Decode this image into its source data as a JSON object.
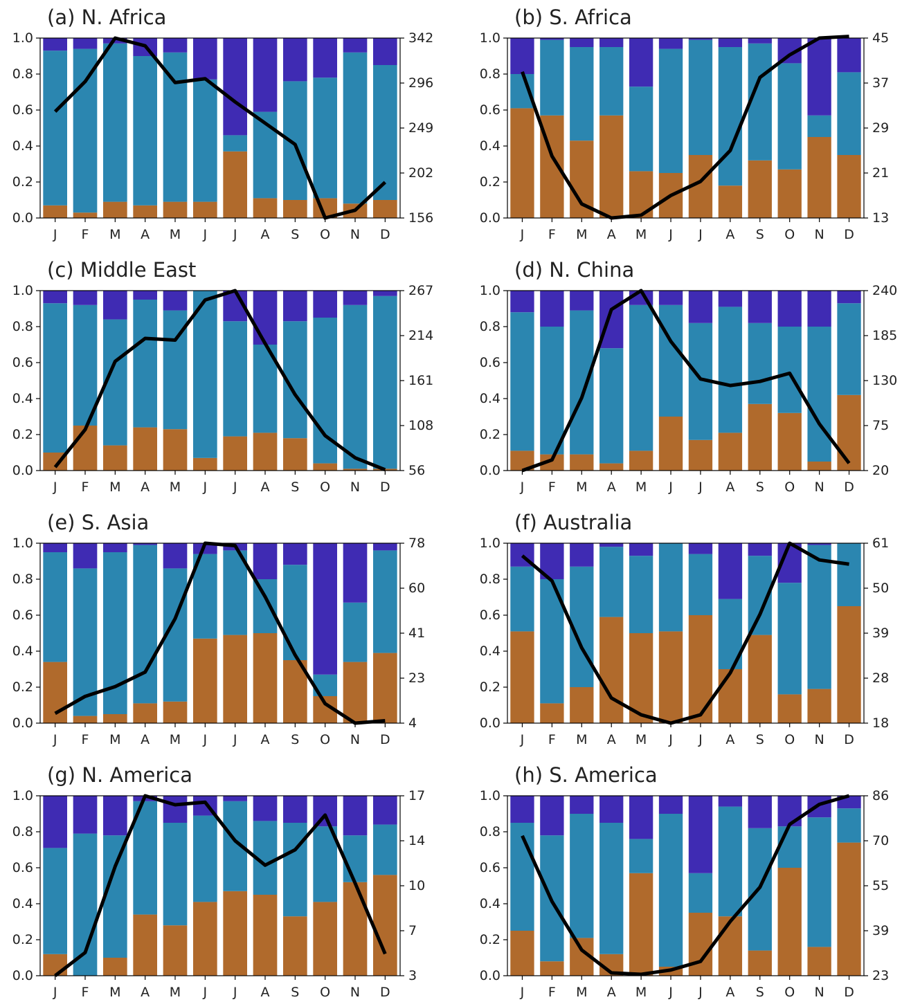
{
  "colors": {
    "bottom": "#b06a2c",
    "middle": "#2b86b0",
    "top": "#3f2bb3",
    "line": "#000000"
  },
  "chart_data": [
    {
      "type": "bar",
      "title": "(a) N. Africa",
      "categories": [
        "J",
        "F",
        "M",
        "A",
        "M",
        "J",
        "J",
        "A",
        "S",
        "O",
        "N",
        "D"
      ],
      "ylim": [
        0,
        1.0
      ],
      "yticks": [
        "0.0",
        "0.2",
        "0.4",
        "0.6",
        "0.8",
        "1.0"
      ],
      "y2lim": [
        156,
        342
      ],
      "y2ticks": [
        "156",
        "202",
        "249",
        "296",
        "342"
      ],
      "series": [
        {
          "values": [
            0.07,
            0.03,
            0.09,
            0.07,
            0.09,
            0.09,
            0.37,
            0.11,
            0.1,
            0.11,
            0.08,
            0.1
          ]
        },
        {
          "values": [
            0.86,
            0.91,
            0.88,
            0.83,
            0.83,
            0.68,
            0.09,
            0.48,
            0.66,
            0.67,
            0.84,
            0.75
          ]
        },
        {
          "values": [
            0.07,
            0.06,
            0.03,
            0.1,
            0.08,
            0.23,
            0.54,
            0.41,
            0.24,
            0.22,
            0.08,
            0.15
          ]
        }
      ],
      "line": [
        266,
        297,
        342,
        334,
        296,
        300,
        276,
        254,
        232,
        156,
        164,
        193
      ]
    },
    {
      "type": "bar",
      "title": "(b) S. Africa",
      "categories": [
        "J",
        "F",
        "M",
        "A",
        "M",
        "J",
        "J",
        "A",
        "S",
        "O",
        "N",
        "D"
      ],
      "ylim": [
        0,
        1.0
      ],
      "yticks": [
        "0.0",
        "0.2",
        "0.4",
        "0.6",
        "0.8",
        "1.0"
      ],
      "y2lim": [
        13,
        45
      ],
      "y2ticks": [
        "13",
        "21",
        "29",
        "37",
        "45"
      ],
      "series": [
        {
          "values": [
            0.61,
            0.57,
            0.43,
            0.57,
            0.26,
            0.25,
            0.35,
            0.18,
            0.32,
            0.27,
            0.45,
            0.35
          ]
        },
        {
          "values": [
            0.19,
            0.42,
            0.52,
            0.38,
            0.47,
            0.69,
            0.64,
            0.77,
            0.65,
            0.59,
            0.12,
            0.46
          ]
        },
        {
          "values": [
            0.2,
            0.01,
            0.05,
            0.05,
            0.27,
            0.06,
            0.01,
            0.05,
            0.03,
            0.14,
            0.43,
            0.19
          ]
        }
      ],
      "line": [
        39,
        24,
        15.5,
        13,
        13.5,
        17,
        19.5,
        25,
        38,
        42,
        45,
        45.3
      ]
    },
    {
      "type": "bar",
      "title": "(c) Middle East",
      "categories": [
        "J",
        "F",
        "M",
        "A",
        "M",
        "J",
        "J",
        "A",
        "S",
        "O",
        "N",
        "D"
      ],
      "ylim": [
        0,
        1.0
      ],
      "yticks": [
        "0.0",
        "0.2",
        "0.4",
        "0.6",
        "0.8",
        "1.0"
      ],
      "y2lim": [
        56,
        267
      ],
      "y2ticks": [
        "56",
        "108",
        "161",
        "214",
        "267"
      ],
      "series": [
        {
          "values": [
            0.1,
            0.25,
            0.14,
            0.24,
            0.23,
            0.07,
            0.19,
            0.21,
            0.18,
            0.04,
            0.01,
            0.01
          ]
        },
        {
          "values": [
            0.83,
            0.67,
            0.7,
            0.71,
            0.66,
            0.93,
            0.64,
            0.49,
            0.65,
            0.81,
            0.91,
            0.96
          ]
        },
        {
          "values": [
            0.07,
            0.08,
            0.16,
            0.05,
            0.11,
            0.0,
            0.17,
            0.3,
            0.17,
            0.15,
            0.08,
            0.03
          ]
        }
      ],
      "line": [
        60,
        104,
        184,
        211,
        209,
        256,
        267,
        205,
        145,
        97,
        71,
        57
      ]
    },
    {
      "type": "bar",
      "title": "(d) N. China",
      "categories": [
        "J",
        "F",
        "M",
        "A",
        "M",
        "J",
        "J",
        "A",
        "S",
        "O",
        "N",
        "D"
      ],
      "ylim": [
        0,
        1.0
      ],
      "yticks": [
        "0.0",
        "0.2",
        "0.4",
        "0.6",
        "0.8",
        "1.0"
      ],
      "y2lim": [
        20,
        240
      ],
      "y2ticks": [
        "20",
        "75",
        "130",
        "185",
        "240"
      ],
      "series": [
        {
          "values": [
            0.11,
            0.09,
            0.09,
            0.04,
            0.11,
            0.3,
            0.17,
            0.21,
            0.37,
            0.32,
            0.05,
            0.42
          ]
        },
        {
          "values": [
            0.77,
            0.71,
            0.8,
            0.64,
            0.81,
            0.62,
            0.65,
            0.7,
            0.45,
            0.48,
            0.75,
            0.51
          ]
        },
        {
          "values": [
            0.12,
            0.2,
            0.11,
            0.32,
            0.08,
            0.08,
            0.18,
            0.09,
            0.18,
            0.2,
            0.2,
            0.07
          ]
        }
      ],
      "line": [
        20,
        33,
        109,
        217,
        240,
        178,
        132,
        124,
        129,
        139,
        77,
        29
      ]
    },
    {
      "type": "bar",
      "title": "(e) S. Asia",
      "categories": [
        "J",
        "F",
        "M",
        "A",
        "M",
        "J",
        "J",
        "A",
        "S",
        "O",
        "N",
        "D"
      ],
      "ylim": [
        0,
        1.0
      ],
      "yticks": [
        "0.0",
        "0.2",
        "0.4",
        "0.6",
        "0.8",
        "1.0"
      ],
      "y2lim": [
        4,
        78
      ],
      "y2ticks": [
        "4",
        "23",
        "41",
        "60",
        "78"
      ],
      "series": [
        {
          "values": [
            0.34,
            0.04,
            0.05,
            0.11,
            0.12,
            0.47,
            0.49,
            0.5,
            0.35,
            0.15,
            0.34,
            0.39
          ]
        },
        {
          "values": [
            0.61,
            0.82,
            0.9,
            0.88,
            0.74,
            0.47,
            0.47,
            0.3,
            0.53,
            0.12,
            0.33,
            0.57
          ]
        },
        {
          "values": [
            0.05,
            0.14,
            0.05,
            0.01,
            0.14,
            0.06,
            0.04,
            0.2,
            0.12,
            0.73,
            0.33,
            0.04
          ]
        }
      ],
      "line": [
        8,
        15,
        19,
        25,
        47,
        78,
        77,
        56,
        32,
        12,
        4,
        5
      ]
    },
    {
      "type": "bar",
      "title": "(f) Australia",
      "categories": [
        "J",
        "F",
        "M",
        "A",
        "M",
        "J",
        "J",
        "A",
        "S",
        "O",
        "N",
        "D"
      ],
      "ylim": [
        0,
        1.0
      ],
      "yticks": [
        "0.0",
        "0.2",
        "0.4",
        "0.6",
        "0.8",
        "1.0"
      ],
      "y2lim": [
        18,
        61
      ],
      "y2ticks": [
        "18",
        "28",
        "39",
        "50",
        "61"
      ],
      "series": [
        {
          "values": [
            0.51,
            0.11,
            0.2,
            0.59,
            0.5,
            0.51,
            0.6,
            0.3,
            0.49,
            0.16,
            0.19,
            0.65
          ]
        },
        {
          "values": [
            0.36,
            0.69,
            0.67,
            0.39,
            0.43,
            0.49,
            0.34,
            0.39,
            0.44,
            0.62,
            0.8,
            0.35
          ]
        },
        {
          "values": [
            0.13,
            0.2,
            0.13,
            0.02,
            0.07,
            0.0,
            0.06,
            0.31,
            0.07,
            0.22,
            0.01,
            0.0
          ]
        }
      ],
      "line": [
        58,
        52,
        36,
        24,
        20,
        18,
        20,
        30,
        44,
        61,
        57,
        56
      ]
    },
    {
      "type": "bar",
      "title": "(g) N. America",
      "categories": [
        "J",
        "F",
        "M",
        "A",
        "M",
        "J",
        "J",
        "A",
        "S",
        "O",
        "N",
        "D"
      ],
      "ylim": [
        0,
        1.0
      ],
      "yticks": [
        "0.0",
        "0.2",
        "0.4",
        "0.6",
        "0.8",
        "1.0"
      ],
      "y2lim": [
        3,
        17
      ],
      "y2ticks": [
        "3",
        "7",
        "10",
        "14",
        "17"
      ],
      "series": [
        {
          "values": [
            0.12,
            0.0,
            0.1,
            0.34,
            0.28,
            0.41,
            0.47,
            0.45,
            0.33,
            0.41,
            0.52,
            0.56
          ]
        },
        {
          "values": [
            0.59,
            0.79,
            0.68,
            0.63,
            0.57,
            0.48,
            0.5,
            0.41,
            0.52,
            0.42,
            0.26,
            0.28
          ]
        },
        {
          "values": [
            0.29,
            0.21,
            0.22,
            0.03,
            0.15,
            0.11,
            0.03,
            0.14,
            0.15,
            0.17,
            0.22,
            0.16
          ]
        }
      ],
      "line": [
        3,
        4.8,
        11.5,
        17,
        16.3,
        16.5,
        13.5,
        11.6,
        12.8,
        15.5,
        10.2,
        4.7
      ]
    },
    {
      "type": "bar",
      "title": "(h) S. America",
      "categories": [
        "J",
        "F",
        "M",
        "A",
        "M",
        "J",
        "J",
        "A",
        "S",
        "O",
        "N",
        "D"
      ],
      "ylim": [
        0,
        1.0
      ],
      "yticks": [
        "0.0",
        "0.2",
        "0.4",
        "0.6",
        "0.8",
        "1.0"
      ],
      "y2lim": [
        23,
        86
      ],
      "y2ticks": [
        "23",
        "39",
        "55",
        "70",
        "86"
      ],
      "series": [
        {
          "values": [
            0.25,
            0.08,
            0.21,
            0.12,
            0.57,
            0.05,
            0.35,
            0.33,
            0.14,
            0.6,
            0.16,
            0.74
          ]
        },
        {
          "values": [
            0.6,
            0.7,
            0.69,
            0.73,
            0.19,
            0.85,
            0.22,
            0.61,
            0.68,
            0.23,
            0.72,
            0.19
          ]
        },
        {
          "values": [
            0.15,
            0.22,
            0.1,
            0.15,
            0.24,
            0.1,
            0.43,
            0.06,
            0.18,
            0.17,
            0.12,
            0.07
          ]
        }
      ],
      "line": [
        72,
        49,
        32,
        24,
        23.5,
        25,
        28,
        42,
        54,
        76,
        83,
        86
      ]
    }
  ]
}
